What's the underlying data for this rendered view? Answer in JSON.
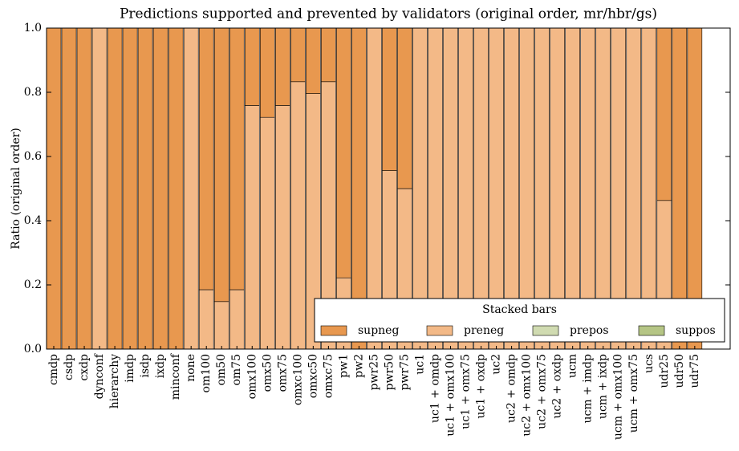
{
  "chart_data": {
    "type": "stacked-bar",
    "title": "Predictions supported and prevented by validators (original order, mr/hbr/gs)",
    "ylabel": "Ratio (original order)",
    "categories": [
      "cmdp",
      "csdp",
      "cxdp",
      "dynconf",
      "hierarchy",
      "imdp",
      "isdp",
      "ixdp",
      "minconf",
      "none",
      "om100",
      "om50",
      "om75",
      "omx100",
      "omx50",
      "omx75",
      "omxc100",
      "omxc50",
      "omxc75",
      "pw1",
      "pw2",
      "pwr25",
      "pwr50",
      "pwr75",
      "uc1",
      "uc1 + omdp",
      "uc1 + omx100",
      "uc1 + omx75",
      "uc1 + oxdp",
      "uc2",
      "uc2 + omdp",
      "uc2 + omx100",
      "uc2 + omx75",
      "uc2 + oxdp",
      "ucm",
      "ucm + imdp",
      "ucm + ixdp",
      "ucm + omx100",
      "ucm + omx75",
      "ucs",
      "udr25",
      "udr50",
      "udr75"
    ],
    "series": [
      {
        "name": "supneg",
        "color": "#e8984f",
        "values": [
          1,
          1,
          1,
          0,
          1,
          1,
          1,
          1,
          1,
          0,
          0.815,
          0.852,
          0.815,
          0.241,
          0.278,
          0.241,
          0.167,
          0.204,
          0.167,
          0.778,
          1,
          0,
          0.444,
          0.5,
          0,
          0,
          0,
          0,
          0,
          0,
          0,
          0,
          0,
          0,
          0,
          0,
          0,
          0,
          0,
          0,
          0.537,
          1,
          1
        ]
      },
      {
        "name": "preneg",
        "color": "#f3b987",
        "values": [
          0,
          0,
          0,
          1,
          0,
          0,
          0,
          0,
          0,
          1,
          0.185,
          0.148,
          0.185,
          0.759,
          0.722,
          0.759,
          0.833,
          0.796,
          0.833,
          0.222,
          0,
          1,
          0.556,
          0.5,
          1,
          1,
          1,
          1,
          1,
          1,
          1,
          1,
          1,
          1,
          1,
          1,
          1,
          1,
          1,
          1,
          0.463,
          0,
          0
        ]
      },
      {
        "name": "prepos",
        "color": "#d0dbb1",
        "values": [
          0,
          0,
          0,
          0,
          0,
          0,
          0,
          0,
          0,
          0,
          0,
          0,
          0,
          0,
          0,
          0,
          0,
          0,
          0,
          0,
          0,
          0,
          0,
          0,
          0,
          0,
          0,
          0,
          0,
          0,
          0,
          0,
          0,
          0,
          0,
          0,
          0,
          0,
          0,
          0,
          0,
          0,
          0
        ]
      },
      {
        "name": "suppos",
        "color": "#b5c585",
        "values": [
          0,
          0,
          0,
          0,
          0,
          0,
          0,
          0,
          0,
          0,
          0,
          0,
          0,
          0,
          0,
          0,
          0,
          0,
          0,
          0,
          0,
          0,
          0,
          0,
          0,
          0,
          0,
          0,
          0,
          0,
          0,
          0,
          0,
          0,
          0,
          0,
          0,
          0,
          0,
          0,
          0,
          0,
          0
        ]
      }
    ],
    "legend_title": "Stacked bars",
    "legend": "lower right",
    "ylim": [
      0,
      1
    ],
    "yticks": [
      {
        "value": 0,
        "label": "0.0"
      },
      0.2,
      0.4,
      0.6,
      0.8,
      {
        "value": 1,
        "label": "1.0"
      }
    ]
  }
}
